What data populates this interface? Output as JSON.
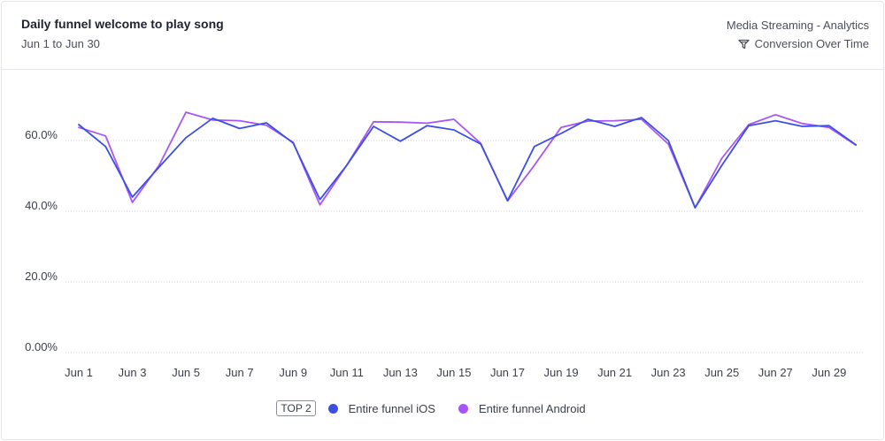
{
  "header": {
    "title": "Daily funnel welcome to play song",
    "subtitle": "Jun 1 to Jun 30",
    "source": "Media Streaming - Analytics",
    "metric_label": "Conversion Over Time",
    "metric_icon": "funnel-icon"
  },
  "legend": {
    "badge": "TOP 2"
  },
  "colors": {
    "ios": "#3b4fe4",
    "android": "#a855f7",
    "grid": "#c9ccd3"
  },
  "chart_data": {
    "type": "line",
    "x": [
      "Jun 1",
      "Jun 2",
      "Jun 3",
      "Jun 4",
      "Jun 5",
      "Jun 6",
      "Jun 7",
      "Jun 8",
      "Jun 9",
      "Jun 10",
      "Jun 11",
      "Jun 12",
      "Jun 13",
      "Jun 14",
      "Jun 15",
      "Jun 16",
      "Jun 17",
      "Jun 18",
      "Jun 19",
      "Jun 20",
      "Jun 21",
      "Jun 22",
      "Jun 23",
      "Jun 24",
      "Jun 25",
      "Jun 26",
      "Jun 27",
      "Jun 28",
      "Jun 29",
      "Jun 30"
    ],
    "x_tick_labels": [
      "Jun 1",
      "Jun 3",
      "Jun 5",
      "Jun 7",
      "Jun 9",
      "Jun 11",
      "Jun 13",
      "Jun 15",
      "Jun 17",
      "Jun 19",
      "Jun 21",
      "Jun 23",
      "Jun 25",
      "Jun 27",
      "Jun 29"
    ],
    "y_ticks": [
      0,
      20,
      40,
      60
    ],
    "y_tick_labels": [
      "0.00%",
      "20.0%",
      "40.0%",
      "60.0%"
    ],
    "ylim": [
      0,
      60
    ],
    "grid": true,
    "legend_position": "bottom",
    "series": [
      {
        "name": "Entire funnel iOS",
        "values": [
          64.5,
          58.3,
          44.0,
          52.5,
          60.8,
          66.3,
          63.4,
          65.0,
          59.3,
          43.3,
          53.0,
          64.0,
          59.8,
          64.2,
          63.0,
          59.0,
          43.0,
          58.3,
          62.0,
          66.0,
          64.0,
          66.5,
          60.0,
          41.0,
          53.0,
          64.2,
          65.6,
          64.0,
          64.2,
          58.8
        ]
      },
      {
        "name": "Entire funnel Android",
        "values": [
          63.7,
          61.3,
          42.5,
          53.0,
          68.0,
          65.8,
          65.6,
          64.3,
          59.5,
          41.8,
          53.0,
          65.3,
          65.2,
          64.9,
          66.0,
          59.2,
          42.9,
          53.0,
          63.7,
          65.5,
          65.6,
          66.0,
          59.0,
          41.0,
          55.0,
          64.5,
          67.3,
          64.8,
          63.7,
          58.7
        ]
      }
    ]
  }
}
